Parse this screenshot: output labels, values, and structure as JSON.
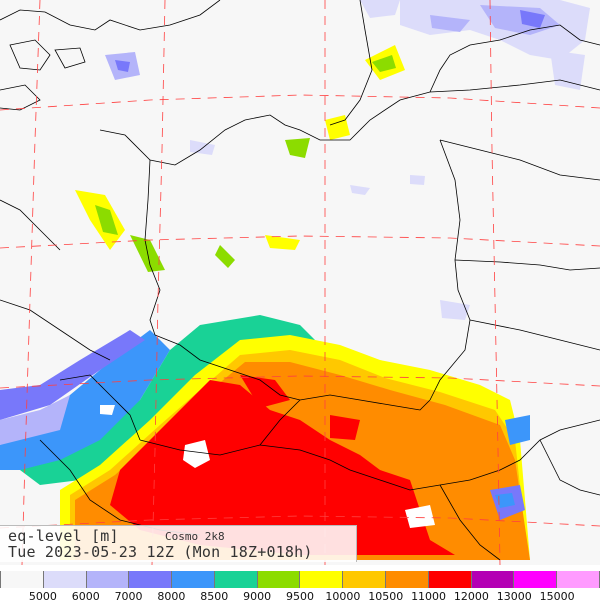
{
  "header": {
    "variable": "eq-level [m]",
    "model": "Cosmo 2k8",
    "run_info": "Tue 2023-05-23 12Z (Mon 18Z+018h)"
  },
  "legend": {
    "colors": [
      "#f7f7f7",
      "#dcdcfa",
      "#b4b4fa",
      "#7878fa",
      "#3c96fa",
      "#19d296",
      "#8cdc00",
      "#ffff00",
      "#ffc800",
      "#ff8c00",
      "#ff0000",
      "#b400b4",
      "#ff00ff",
      "#ff9bff"
    ],
    "ticks": [
      "5000",
      "6000",
      "7000",
      "8000",
      "8500",
      "9000",
      "9500",
      "10000",
      "10500",
      "11000",
      "12000",
      "13000",
      "15000"
    ]
  },
  "map_colors": {
    "background": "#f7f7f7",
    "border": "#000000",
    "grid": "#ff4040"
  }
}
